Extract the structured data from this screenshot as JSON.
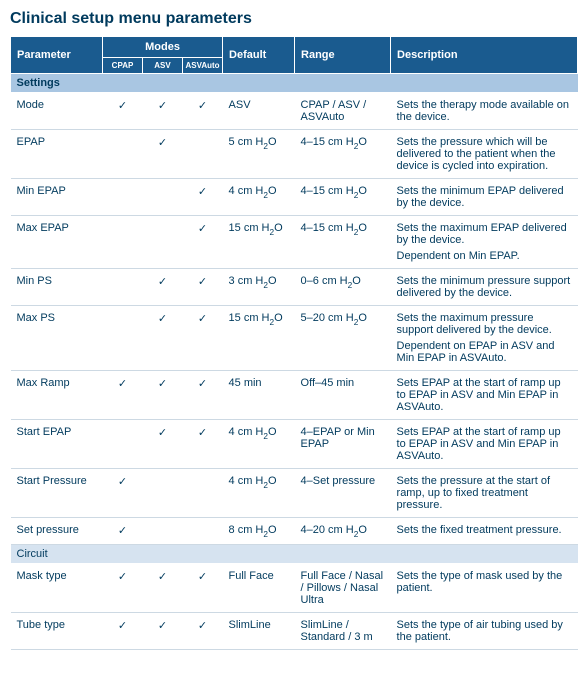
{
  "title": "Clinical setup menu parameters",
  "colors": {
    "header_bg": "#1a5b8f",
    "header_fg": "#ffffff",
    "section_bg": "#a9c6e2",
    "section_light_bg": "#d6e3f0",
    "text": "#003a5d",
    "row_border": "#cdd9e3",
    "page_bg": "#ffffff"
  },
  "columns": {
    "parameter": "Parameter",
    "modes": "Modes",
    "mode_sub": [
      "CPAP",
      "ASV",
      "ASVAuto"
    ],
    "default": "Default",
    "range": "Range",
    "description": "Description"
  },
  "sections": [
    {
      "label": "Settings",
      "style": "section",
      "rows": [
        {
          "parameter": "Mode",
          "modes": [
            true,
            true,
            true
          ],
          "default": "ASV",
          "range": "CPAP / ASV / ASVAuto",
          "description": [
            "Sets the therapy mode available on the device."
          ]
        },
        {
          "parameter": "EPAP",
          "modes": [
            false,
            true,
            false
          ],
          "default_html": "5 cm H<sub>2</sub>O",
          "range_html": "4–15 cm H<sub>2</sub>O",
          "description": [
            "Sets the pressure which will be delivered to the patient when the device is cycled into expiration."
          ]
        },
        {
          "parameter": "Min EPAP",
          "modes": [
            false,
            false,
            true
          ],
          "default_html": "4 cm H<sub>2</sub>O",
          "range_html": "4–15 cm H<sub>2</sub>O",
          "description": [
            "Sets the minimum EPAP delivered by the device."
          ]
        },
        {
          "parameter": "Max EPAP",
          "modes": [
            false,
            false,
            true
          ],
          "default_html": "15 cm H<sub>2</sub>O",
          "range_html": "4–15 cm H<sub>2</sub>O",
          "description": [
            "Sets the maximum EPAP delivered by the device.",
            "Dependent on Min EPAP."
          ]
        },
        {
          "parameter": "Min PS",
          "modes": [
            false,
            true,
            true
          ],
          "default_html": "3 cm H<sub>2</sub>O",
          "range_html": "0–6 cm H<sub>2</sub>O",
          "description": [
            "Sets the minimum pressure support delivered by the device."
          ]
        },
        {
          "parameter": "Max PS",
          "modes": [
            false,
            true,
            true
          ],
          "default_html": "15 cm H<sub>2</sub>O",
          "range_html": "5–20 cm H<sub>2</sub>O",
          "description": [
            "Sets the maximum pressure support delivered by the device.",
            "Dependent on EPAP in ASV and Min EPAP in ASVAuto."
          ]
        },
        {
          "parameter": "Max Ramp",
          "modes": [
            true,
            true,
            true
          ],
          "default": "45 min",
          "range": "Off–45 min",
          "description": [
            "Sets EPAP at the start of ramp up to EPAP in ASV and Min EPAP in ASVAuto."
          ]
        },
        {
          "parameter": "Start EPAP",
          "modes": [
            false,
            true,
            true
          ],
          "default_html": "4 cm H<sub>2</sub>O",
          "range": "4–EPAP or Min EPAP",
          "description": [
            "Sets EPAP at the start of ramp up to EPAP in ASV and Min EPAP in ASVAuto."
          ]
        },
        {
          "parameter": "Start Pressure",
          "modes": [
            true,
            false,
            false
          ],
          "default_html": "4 cm H<sub>2</sub>O",
          "range": "4–Set pressure",
          "description": [
            "Sets the pressure at the start of ramp, up to fixed treatment pressure."
          ]
        },
        {
          "parameter": "Set pressure",
          "modes": [
            true,
            false,
            false
          ],
          "default_html": "8 cm H<sub>2</sub>O",
          "range_html": "4–20 cm H<sub>2</sub>O",
          "description": [
            "Sets the fixed treatment pressure."
          ]
        }
      ]
    },
    {
      "label": "Circuit",
      "style": "section-light",
      "rows": [
        {
          "parameter": "Mask type",
          "modes": [
            true,
            true,
            true
          ],
          "default": "Full Face",
          "range": "Full Face / Nasal / Pillows / Nasal Ultra",
          "description": [
            "Sets the type of mask used by the patient."
          ]
        },
        {
          "parameter": "Tube type",
          "modes": [
            true,
            true,
            true
          ],
          "default": "SlimLine",
          "range": "SlimLine / Standard / 3 m",
          "description": [
            "Sets the type of air tubing used by the patient."
          ]
        }
      ]
    }
  ],
  "tick_char": "✓"
}
